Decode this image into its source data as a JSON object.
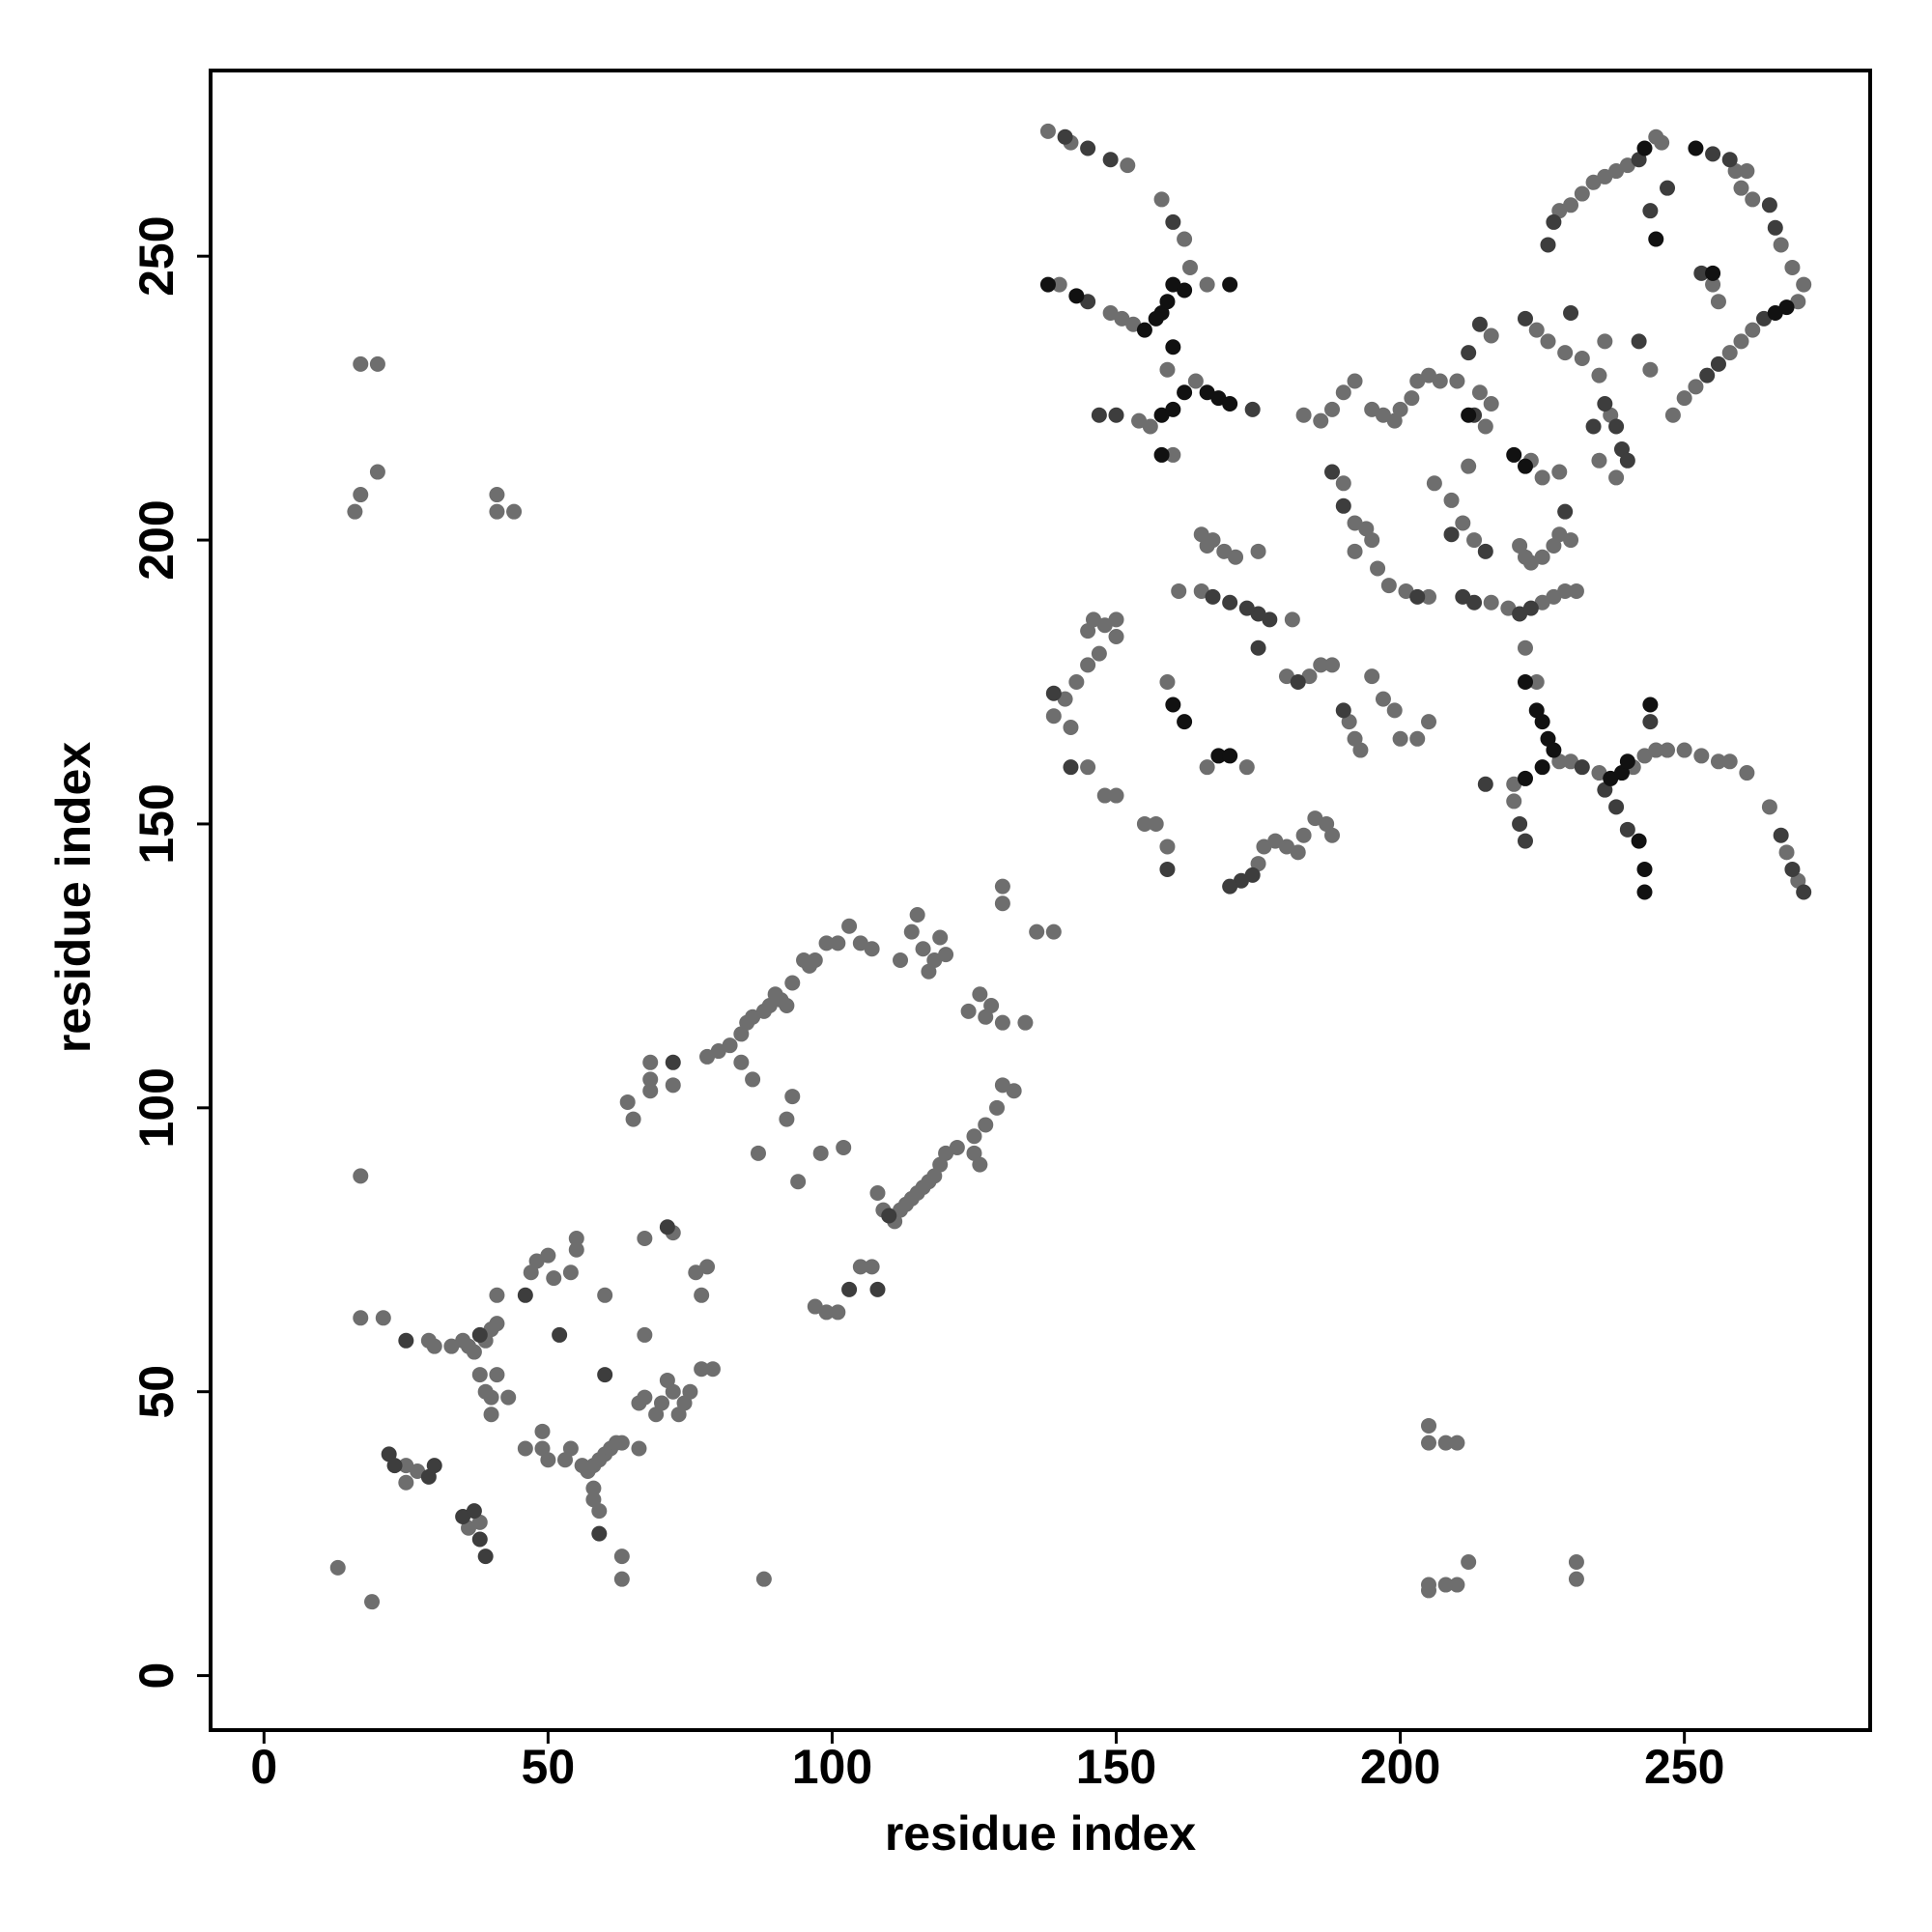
{
  "chart_data": {
    "type": "scatter",
    "x_label": "residue index",
    "y_label": "residue index",
    "xlim": [
      -9.4,
      282.7
    ],
    "ylim": [
      -9.6,
      282.7
    ],
    "xticks": [
      0,
      50,
      100,
      150,
      200,
      250
    ],
    "yticks": [
      0,
      50,
      100,
      150,
      200,
      250
    ],
    "series": [
      {
        "color": "#6e6e6e",
        "x": [
          13,
          19,
          17,
          17,
          21,
          16,
          17,
          17,
          20,
          20,
          41,
          41,
          44,
          29,
          30,
          33,
          35,
          36,
          37,
          39,
          40,
          41,
          41,
          25,
          27,
          25,
          36,
          38,
          38,
          39,
          40,
          43,
          41,
          40,
          47,
          48,
          50,
          51,
          54,
          55,
          55,
          60,
          67,
          46,
          49,
          49,
          50,
          53,
          54,
          56,
          57,
          58,
          59,
          60,
          61,
          62,
          63,
          58,
          58,
          59,
          63,
          63,
          66,
          66,
          67,
          69,
          70,
          71,
          72,
          73,
          74,
          75,
          77,
          79,
          76,
          78,
          77,
          72,
          67,
          64,
          65,
          68,
          68,
          68,
          72,
          78,
          80,
          82,
          84,
          85,
          86,
          88,
          89,
          90,
          91,
          92,
          93,
          95,
          97,
          99,
          96,
          84,
          86,
          87,
          92,
          93,
          94,
          98,
          102,
          97,
          99,
          101,
          105,
          107,
          108,
          109,
          111,
          112,
          113,
          114,
          115,
          116,
          117,
          118,
          119,
          120,
          122,
          125,
          127,
          129,
          130,
          132,
          126,
          125,
          101,
          103,
          105,
          107,
          114,
          115,
          116,
          117,
          118,
          119,
          120,
          124,
          126,
          127,
          128,
          130,
          134,
          130,
          130,
          136,
          139,
          112,
          88,
          138,
          142,
          152,
          158,
          162,
          163,
          140,
          149,
          151,
          153,
          166,
          154,
          156,
          164,
          160,
          159,
          145,
          146,
          148,
          150,
          150,
          147,
          145,
          143,
          141,
          139,
          142,
          145,
          148,
          150,
          155,
          157,
          159,
          159,
          161,
          165,
          166,
          167,
          169,
          171,
          175,
          165,
          180,
          181,
          184,
          186,
          188,
          191,
          192,
          193,
          166,
          173,
          175,
          176,
          178,
          180,
          182,
          183,
          185,
          187,
          188,
          190,
          192,
          192,
          194,
          195,
          196,
          198,
          201,
          205,
          195,
          197,
          199,
          200,
          203,
          205,
          183,
          186,
          188,
          190,
          192,
          195,
          197,
          199,
          200,
          202,
          203,
          205,
          207,
          210,
          214,
          216,
          215,
          216,
          211,
          213,
          216,
          206,
          209,
          212,
          223,
          225,
          228,
          221,
          222,
          223,
          225,
          227,
          228,
          230,
          219,
          225,
          227,
          229,
          231,
          222,
          224,
          220,
          228,
          230,
          235,
          241,
          243,
          245,
          247,
          250,
          253,
          256,
          258,
          261,
          265,
          268,
          270,
          220,
          228,
          230,
          232,
          234,
          236,
          238,
          240,
          245,
          246,
          261,
          267,
          269,
          271,
          270,
          262,
          260,
          258,
          252,
          250,
          248,
          255,
          256,
          259,
          262,
          260,
          226,
          229,
          232,
          235,
          237,
          238,
          235,
          236,
          244,
          224,
          205,
          205,
          208,
          210,
          205,
          205,
          208,
          210,
          212,
          231,
          231
        ],
        "values": [
          19,
          13,
          88,
          63,
          63,
          205,
          208,
          231,
          231,
          212,
          208,
          205,
          205,
          59,
          58,
          58,
          59,
          58,
          57,
          59,
          61,
          62,
          67,
          37,
          36,
          34,
          26,
          27,
          53,
          50,
          49,
          49,
          53,
          46,
          71,
          73,
          74,
          70,
          71,
          77,
          75,
          67,
          60,
          40,
          40,
          43,
          38,
          38,
          40,
          37,
          36,
          37,
          38,
          39,
          40,
          41,
          41,
          33,
          31,
          29,
          21,
          17,
          40,
          48,
          49,
          46,
          48,
          52,
          50,
          46,
          48,
          50,
          54,
          54,
          71,
          72,
          67,
          78,
          77,
          101,
          98,
          103,
          108,
          105,
          104,
          109,
          110,
          111,
          113,
          115,
          116,
          117,
          118,
          120,
          119,
          118,
          122,
          126,
          126,
          129,
          125,
          108,
          105,
          92,
          98,
          102,
          87,
          92,
          93,
          65,
          64,
          64,
          72,
          72,
          85,
          82,
          80,
          82,
          83,
          84,
          85,
          86,
          87,
          88,
          90,
          92,
          93,
          95,
          97,
          100,
          104,
          103,
          90,
          92,
          129,
          132,
          129,
          128,
          131,
          134,
          128,
          124,
          126,
          130,
          127,
          117,
          120,
          116,
          118,
          115,
          115,
          136,
          139,
          131,
          131,
          126,
          17,
          272,
          270,
          266,
          260,
          253,
          248,
          245,
          240,
          239,
          238,
          245,
          221,
          220,
          228,
          215,
          230,
          184,
          186,
          185,
          186,
          183,
          180,
          178,
          175,
          172,
          169,
          167,
          160,
          155,
          155,
          150,
          150,
          146,
          175,
          191,
          201,
          199,
          200,
          198,
          197,
          198,
          191,
          176,
          186,
          176,
          178,
          178,
          168,
          165,
          163,
          160,
          160,
          143,
          146,
          147,
          146,
          145,
          148,
          151,
          150,
          148,
          210,
          203,
          198,
          202,
          200,
          195,
          192,
          191,
          190,
          176,
          172,
          170,
          165,
          165,
          168,
          222,
          221,
          223,
          226,
          228,
          223,
          222,
          221,
          223,
          225,
          228,
          229,
          228,
          228,
          226,
          236,
          220,
          224,
          203,
          200,
          189,
          210,
          207,
          213,
          214,
          211,
          212,
          199,
          197,
          196,
          197,
          199,
          201,
          200,
          188,
          189,
          190,
          191,
          191,
          181,
          175,
          157,
          161,
          161,
          159,
          160,
          162,
          163,
          163,
          163,
          162,
          161,
          161,
          159,
          153,
          145,
          140,
          154,
          258,
          259,
          261,
          263,
          264,
          265,
          266,
          271,
          270,
          265,
          252,
          248,
          245,
          242,
          237,
          235,
          233,
          227,
          225,
          222,
          245,
          242,
          265,
          260,
          262,
          235,
          233,
          232,
          229,
          222,
          211,
          214,
          235,
          230,
          237,
          44,
          41,
          41,
          41,
          16,
          15,
          16,
          16,
          20,
          20,
          17
        ]
      },
      {
        "color": "#3d3d3d",
        "x": [
          25,
          38,
          35,
          37,
          38,
          39,
          22,
          23,
          29,
          30,
          52,
          60,
          59,
          46,
          71,
          72,
          110,
          108,
          103,
          141,
          145,
          149,
          160,
          145,
          147,
          150,
          174,
          139,
          142,
          159,
          175,
          173,
          177,
          167,
          170,
          175,
          190,
          182,
          172,
          174,
          170,
          188,
          190,
          203,
          211,
          213,
          214,
          212,
          213,
          215,
          209,
          221,
          223,
          229,
          236,
          238,
          239,
          240,
          234,
          242,
          230,
          222,
          215,
          232,
          236,
          238,
          240,
          244,
          267,
          269,
          271,
          227,
          226,
          242,
          244,
          247,
          255,
          258,
          265,
          266,
          254,
          256,
          253,
          264,
          221,
          222
        ],
        "values": [
          59,
          60,
          28,
          29,
          24,
          21,
          39,
          37,
          35,
          37,
          60,
          53,
          25,
          67,
          79,
          108,
          81,
          68,
          68,
          271,
          269,
          267,
          256,
          242,
          222,
          222,
          223,
          173,
          160,
          142,
          187,
          188,
          186,
          190,
          189,
          181,
          170,
          175,
          140,
          141,
          139,
          212,
          206,
          190,
          190,
          189,
          238,
          233,
          222,
          198,
          201,
          187,
          188,
          205,
          224,
          220,
          216,
          214,
          220,
          235,
          240,
          239,
          157,
          160,
          156,
          153,
          149,
          168,
          148,
          142,
          138,
          256,
          252,
          267,
          258,
          262,
          268,
          267,
          259,
          255,
          229,
          231,
          247,
          239,
          150,
          147
        ]
      },
      {
        "color": "#111111",
        "x": [
          158,
          157,
          159,
          160,
          162,
          170,
          138,
          143,
          155,
          160,
          158,
          160,
          162,
          166,
          168,
          170,
          158,
          224,
          225,
          226,
          227,
          225,
          222,
          237,
          239,
          240,
          222,
          162,
          160,
          168,
          170,
          242,
          243,
          243,
          244,
          212,
          245,
          255,
          266,
          268,
          243,
          252,
          220,
          222
        ],
        "values": [
          240,
          239,
          242,
          245,
          244,
          245,
          245,
          243,
          237,
          234,
          222,
          223,
          226,
          226,
          225,
          224,
          215,
          170,
          168,
          165,
          163,
          160,
          158,
          158,
          159,
          161,
          175,
          168,
          171,
          162,
          162,
          147,
          142,
          138,
          171,
          222,
          253,
          247,
          240,
          241,
          269,
          269,
          215,
          213
        ]
      }
    ]
  }
}
